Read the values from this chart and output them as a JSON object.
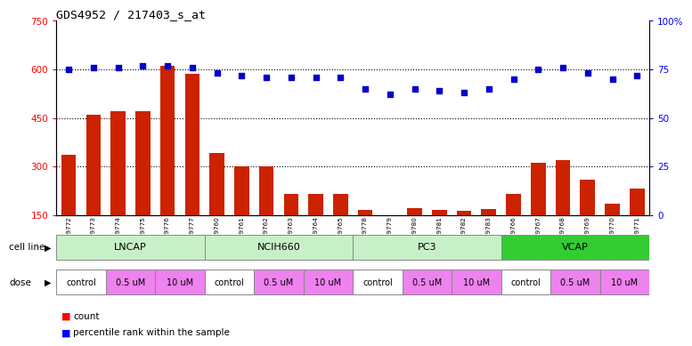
{
  "title": "GDS4952 / 217403_s_at",
  "gsm_ids": [
    "GSM1359772",
    "GSM1359773",
    "GSM1359774",
    "GSM1359775",
    "GSM1359776",
    "GSM1359777",
    "GSM1359760",
    "GSM1359761",
    "GSM1359762",
    "GSM1359763",
    "GSM1359764",
    "GSM1359765",
    "GSM1359778",
    "GSM1359779",
    "GSM1359780",
    "GSM1359781",
    "GSM1359782",
    "GSM1359783",
    "GSM1359766",
    "GSM1359767",
    "GSM1359768",
    "GSM1359769",
    "GSM1359770",
    "GSM1359771"
  ],
  "counts": [
    335,
    460,
    470,
    470,
    610,
    585,
    340,
    300,
    300,
    215,
    215,
    215,
    165,
    112,
    170,
    165,
    162,
    168,
    215,
    312,
    318,
    260,
    185,
    230
  ],
  "percentiles": [
    75,
    76,
    76,
    77,
    77,
    76,
    73,
    72,
    71,
    71,
    71,
    71,
    65,
    62,
    65,
    64,
    63,
    65,
    70,
    75,
    76,
    73,
    70,
    72
  ],
  "cell_lines": [
    {
      "name": "LNCAP",
      "start": 0,
      "end": 6,
      "color": "#c8f0c8"
    },
    {
      "name": "NCIH660",
      "start": 6,
      "end": 12,
      "color": "#c8f0c8"
    },
    {
      "name": "PC3",
      "start": 12,
      "end": 18,
      "color": "#c8f0c8"
    },
    {
      "name": "VCAP",
      "start": 18,
      "end": 24,
      "color": "#33cc33"
    }
  ],
  "dose_groups": [
    {
      "label": "control",
      "start": 0,
      "end": 2,
      "color": "#ffffff"
    },
    {
      "label": "0.5 uM",
      "start": 2,
      "end": 4,
      "color": "#ee82ee"
    },
    {
      "label": "10 uM",
      "start": 4,
      "end": 6,
      "color": "#ee82ee"
    },
    {
      "label": "control",
      "start": 6,
      "end": 8,
      "color": "#ffffff"
    },
    {
      "label": "0.5 uM",
      "start": 8,
      "end": 10,
      "color": "#ee82ee"
    },
    {
      "label": "10 uM",
      "start": 10,
      "end": 12,
      "color": "#ee82ee"
    },
    {
      "label": "control",
      "start": 12,
      "end": 14,
      "color": "#ffffff"
    },
    {
      "label": "0.5 uM",
      "start": 14,
      "end": 16,
      "color": "#ee82ee"
    },
    {
      "label": "10 uM",
      "start": 16,
      "end": 18,
      "color": "#ee82ee"
    },
    {
      "label": "control",
      "start": 18,
      "end": 20,
      "color": "#ffffff"
    },
    {
      "label": "0.5 uM",
      "start": 20,
      "end": 22,
      "color": "#ee82ee"
    },
    {
      "label": "10 uM",
      "start": 22,
      "end": 24,
      "color": "#ee82ee"
    }
  ],
  "bar_color": "#cc2200",
  "dot_color": "#0000cc",
  "ylim_left": [
    150,
    750
  ],
  "ylim_right": [
    0,
    100
  ],
  "yticks_left": [
    150,
    300,
    450,
    600,
    750
  ],
  "yticks_right": [
    0,
    25,
    50,
    75,
    100
  ],
  "hlines": [
    300,
    450,
    600
  ],
  "background_color": "#ffffff",
  "plot_bg_color": "#ffffff"
}
